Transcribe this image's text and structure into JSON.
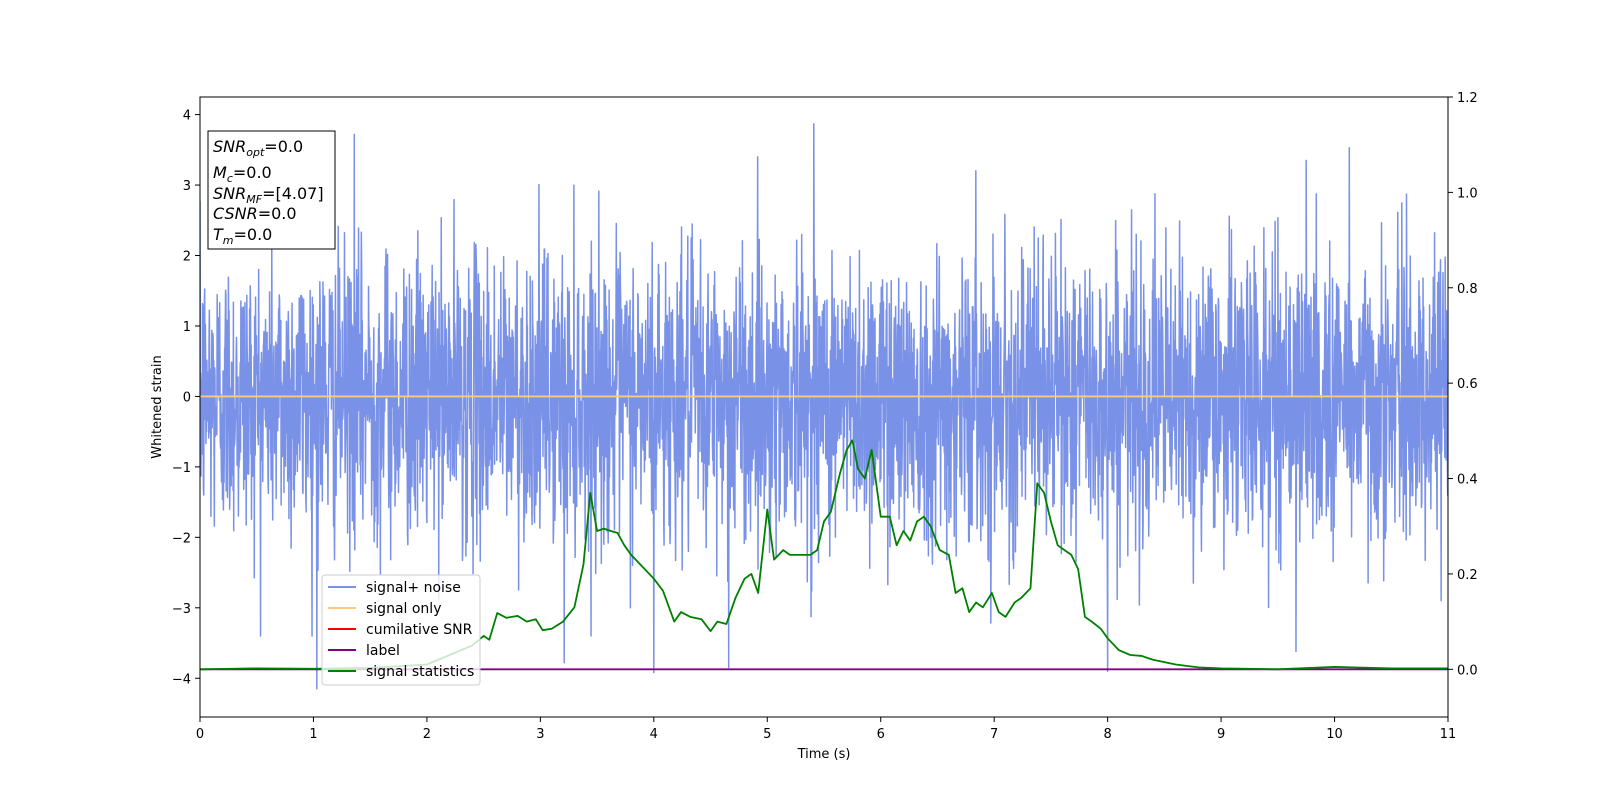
{
  "chart_data": {
    "type": "line",
    "xlabel": "Time (s)",
    "ylabel": "Whitened strain",
    "xlim": [
      0,
      11
    ],
    "ylim_left": [
      -4.55,
      4.25
    ],
    "ylim_right": [
      -0.1,
      1.2
    ],
    "x_ticks": [
      0,
      1,
      2,
      3,
      4,
      5,
      6,
      7,
      8,
      9,
      10,
      11
    ],
    "y_ticks_left": [
      -4,
      -3,
      -2,
      -1,
      0,
      1,
      2,
      3,
      4
    ],
    "y_ticks_right": [
      0.0,
      0.2,
      0.4,
      0.6,
      0.8,
      1.0,
      1.2
    ],
    "legend_position": "lower-left",
    "legend": [
      {
        "label": "signal+ noise",
        "color": "#7991e6"
      },
      {
        "label": "signal only",
        "color": "#ffc87a"
      },
      {
        "label": "cumilative SNR",
        "color": "#ff0000"
      },
      {
        "label": "label",
        "color": "#800080"
      },
      {
        "label": "signal statistics",
        "color": "#008000"
      }
    ],
    "info_box": {
      "snr_opt": {
        "main": "SNR",
        "sub": "opt",
        "value": "=0.0"
      },
      "mc": {
        "main": "M",
        "sub": "c",
        "value": "=0.0"
      },
      "snr_mf": {
        "main": "SNR",
        "sub": "MF",
        "value": "=[4.07]"
      },
      "csnr": {
        "main": "CSNR",
        "sub": "",
        "value": "=0.0"
      },
      "tm": {
        "main": "T",
        "sub": "m",
        "value": "=0.0"
      }
    },
    "series": [
      {
        "name": "signal+ noise",
        "axis": "left",
        "color": "#7991e6",
        "description_stats": {
          "mean": 0.0,
          "std": 1.0,
          "x_start": 0,
          "x_end": 11
        },
        "notable_peaks": [
          [
            1.36,
            3.72
          ],
          [
            5.41,
            3.87
          ],
          [
            10.13,
            3.53
          ],
          [
            9.75,
            3.35
          ],
          [
            1.03,
            -4.15
          ],
          [
            4.0,
            -3.92
          ],
          [
            8.0,
            -3.9
          ],
          [
            4.66,
            -3.85
          ],
          [
            3.21,
            -3.78
          ],
          [
            9.66,
            -3.62
          ]
        ]
      },
      {
        "name": "signal only",
        "axis": "left",
        "color": "#ffc87a",
        "x": [
          0,
          11
        ],
        "y": [
          0,
          0
        ]
      },
      {
        "name": "label",
        "axis": "right",
        "color": "#800080",
        "x": [
          0,
          11
        ],
        "y": [
          0,
          0
        ]
      },
      {
        "name": "signal statistics",
        "axis": "right",
        "color": "#008000",
        "x": [
          0,
          0.5,
          1.0,
          1.5,
          2.0,
          2.2,
          2.4,
          2.5,
          2.55,
          2.62,
          2.7,
          2.8,
          2.88,
          2.96,
          3.02,
          3.1,
          3.2,
          3.3,
          3.38,
          3.44,
          3.5,
          3.56,
          3.62,
          3.68,
          3.74,
          3.8,
          3.9,
          4.0,
          4.08,
          4.18,
          4.24,
          4.32,
          4.42,
          4.5,
          4.56,
          4.64,
          4.72,
          4.8,
          4.86,
          4.92,
          5.0,
          5.06,
          5.14,
          5.2,
          5.3,
          5.38,
          5.44,
          5.5,
          5.56,
          5.64,
          5.7,
          5.75,
          5.8,
          5.86,
          5.92,
          6.0,
          6.08,
          6.14,
          6.2,
          6.26,
          6.32,
          6.38,
          6.44,
          6.52,
          6.6,
          6.66,
          6.72,
          6.78,
          6.84,
          6.9,
          6.98,
          7.04,
          7.1,
          7.18,
          7.24,
          7.32,
          7.38,
          7.44,
          7.5,
          7.56,
          7.62,
          7.68,
          7.74,
          7.8,
          7.86,
          7.94,
          8.0,
          8.1,
          8.2,
          8.3,
          8.4,
          8.5,
          8.6,
          8.8,
          9.0,
          9.5,
          10.0,
          10.5,
          11.0
        ],
        "y": [
          0.0,
          0.002,
          0.001,
          0.003,
          0.01,
          0.03,
          0.05,
          0.07,
          0.062,
          0.118,
          0.108,
          0.112,
          0.1,
          0.105,
          0.082,
          0.085,
          0.1,
          0.13,
          0.22,
          0.37,
          0.29,
          0.295,
          0.29,
          0.286,
          0.26,
          0.24,
          0.215,
          0.19,
          0.165,
          0.1,
          0.12,
          0.11,
          0.105,
          0.08,
          0.1,
          0.095,
          0.15,
          0.19,
          0.2,
          0.16,
          0.335,
          0.23,
          0.25,
          0.24,
          0.24,
          0.24,
          0.25,
          0.31,
          0.33,
          0.41,
          0.46,
          0.48,
          0.42,
          0.4,
          0.46,
          0.32,
          0.32,
          0.26,
          0.29,
          0.27,
          0.31,
          0.32,
          0.3,
          0.25,
          0.24,
          0.16,
          0.17,
          0.12,
          0.14,
          0.13,
          0.16,
          0.12,
          0.11,
          0.14,
          0.15,
          0.17,
          0.39,
          0.37,
          0.31,
          0.26,
          0.25,
          0.24,
          0.21,
          0.11,
          0.1,
          0.085,
          0.065,
          0.04,
          0.03,
          0.028,
          0.02,
          0.015,
          0.01,
          0.004,
          0.002,
          0.0,
          0.005,
          0.002,
          0.002
        ]
      }
    ]
  }
}
